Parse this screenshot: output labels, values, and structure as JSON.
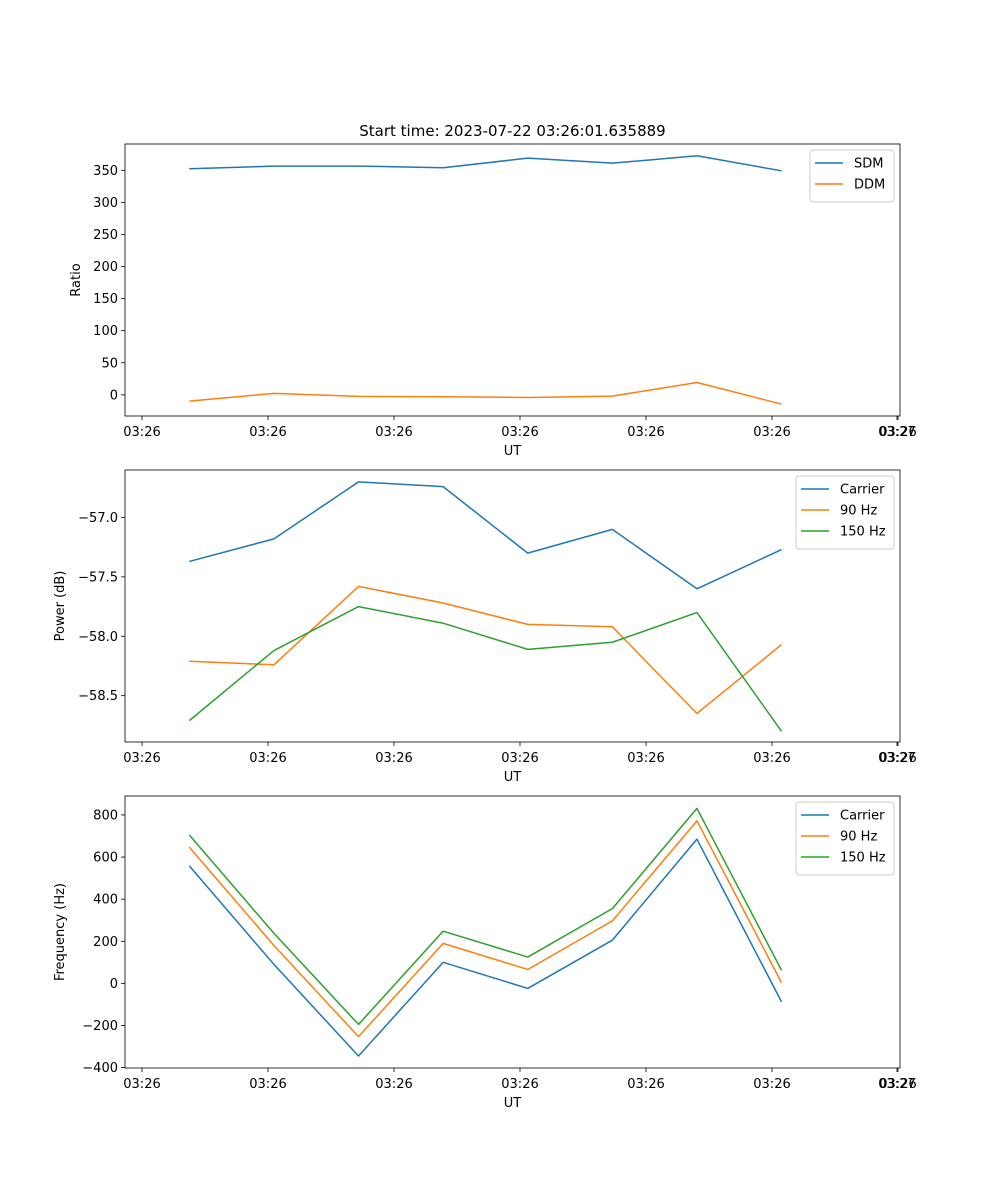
{
  "figure_title": "Start time: 2023-07-22 03:26:01.635889",
  "colors": {
    "blue": "#1f77b4",
    "orange": "#ff7f0e",
    "green": "#2ca02c"
  },
  "chart_data": [
    {
      "type": "line",
      "title": "Start time: 2023-07-22 03:26:01.635889",
      "xlabel": "UT",
      "ylabel": "Ratio",
      "x_ticks": [
        "03:26",
        "03:26",
        "03:26",
        "03:26",
        "03:26",
        "03:26",
        "03:26",
        "03:27"
      ],
      "y_ticks": [
        0,
        50,
        100,
        150,
        200,
        250,
        300,
        350
      ],
      "ylim": [
        -33,
        391
      ],
      "x": [
        1,
        2,
        3,
        4,
        5,
        6,
        7,
        8
      ],
      "xlim": [
        0.24,
        9.4
      ],
      "legend": "top-right",
      "series": [
        {
          "name": "SDM",
          "color": "#1f77b4",
          "values": [
            352.5,
            356.5,
            356.6,
            353.9,
            368.9,
            361.1,
            372.6,
            349.2
          ]
        },
        {
          "name": "DDM",
          "color": "#ff7f0e",
          "values": [
            -9.8,
            2.3,
            -2.5,
            -2.9,
            -4.1,
            -2.0,
            19.2,
            -14.4
          ]
        }
      ]
    },
    {
      "type": "line",
      "xlabel": "UT",
      "ylabel": "Power (dB)",
      "x_ticks": [
        "03:26",
        "03:26",
        "03:26",
        "03:26",
        "03:26",
        "03:26",
        "03:26",
        "03:27"
      ],
      "y_ticks": [
        -58.5,
        -58.0,
        -57.5,
        -57.0
      ],
      "y_tick_labels": [
        "−58.5",
        "−58.0",
        "−57.5",
        "−57.0"
      ],
      "ylim": [
        -58.89,
        -56.6
      ],
      "x": [
        1,
        2,
        3,
        4,
        5,
        6,
        7,
        8
      ],
      "xlim": [
        0.24,
        9.4
      ],
      "legend": "top-right",
      "series": [
        {
          "name": "Carrier",
          "color": "#1f77b4",
          "values": [
            -57.37,
            -57.18,
            -56.7,
            -56.74,
            -57.3,
            -57.1,
            -57.6,
            -57.27
          ]
        },
        {
          "name": "90 Hz",
          "color": "#ff7f0e",
          "values": [
            -58.21,
            -58.24,
            -57.58,
            -57.72,
            -57.9,
            -57.92,
            -58.65,
            -58.07
          ]
        },
        {
          "name": "150 Hz",
          "color": "#2ca02c",
          "values": [
            -58.71,
            -58.12,
            -57.75,
            -57.89,
            -58.11,
            -58.05,
            -57.8,
            -58.8
          ]
        }
      ]
    },
    {
      "type": "line",
      "xlabel": "UT",
      "ylabel": "Frequency (Hz)",
      "x_ticks": [
        "03:26",
        "03:26",
        "03:26",
        "03:26",
        "03:26",
        "03:26",
        "03:26",
        "03:27"
      ],
      "y_ticks": [
        -400,
        -200,
        0,
        200,
        400,
        600,
        800
      ],
      "y_tick_labels": [
        "−400",
        "−200",
        "0",
        "200",
        "400",
        "600",
        "800"
      ],
      "ylim": [
        -402,
        890
      ],
      "x": [
        1,
        2,
        3,
        4,
        5,
        6,
        7,
        8
      ],
      "xlim": [
        0.24,
        9.4
      ],
      "legend": "top-right",
      "series": [
        {
          "name": "Carrier",
          "color": "#1f77b4",
          "values": [
            558,
            90,
            -345,
            100,
            -24,
            205,
            685,
            -88
          ]
        },
        {
          "name": "90 Hz",
          "color": "#ff7f0e",
          "values": [
            647,
            180,
            -253,
            190,
            66,
            297,
            772,
            3
          ]
        },
        {
          "name": "150 Hz",
          "color": "#2ca02c",
          "values": [
            705,
            238,
            -195,
            248,
            125,
            355,
            831,
            62
          ]
        }
      ]
    }
  ]
}
